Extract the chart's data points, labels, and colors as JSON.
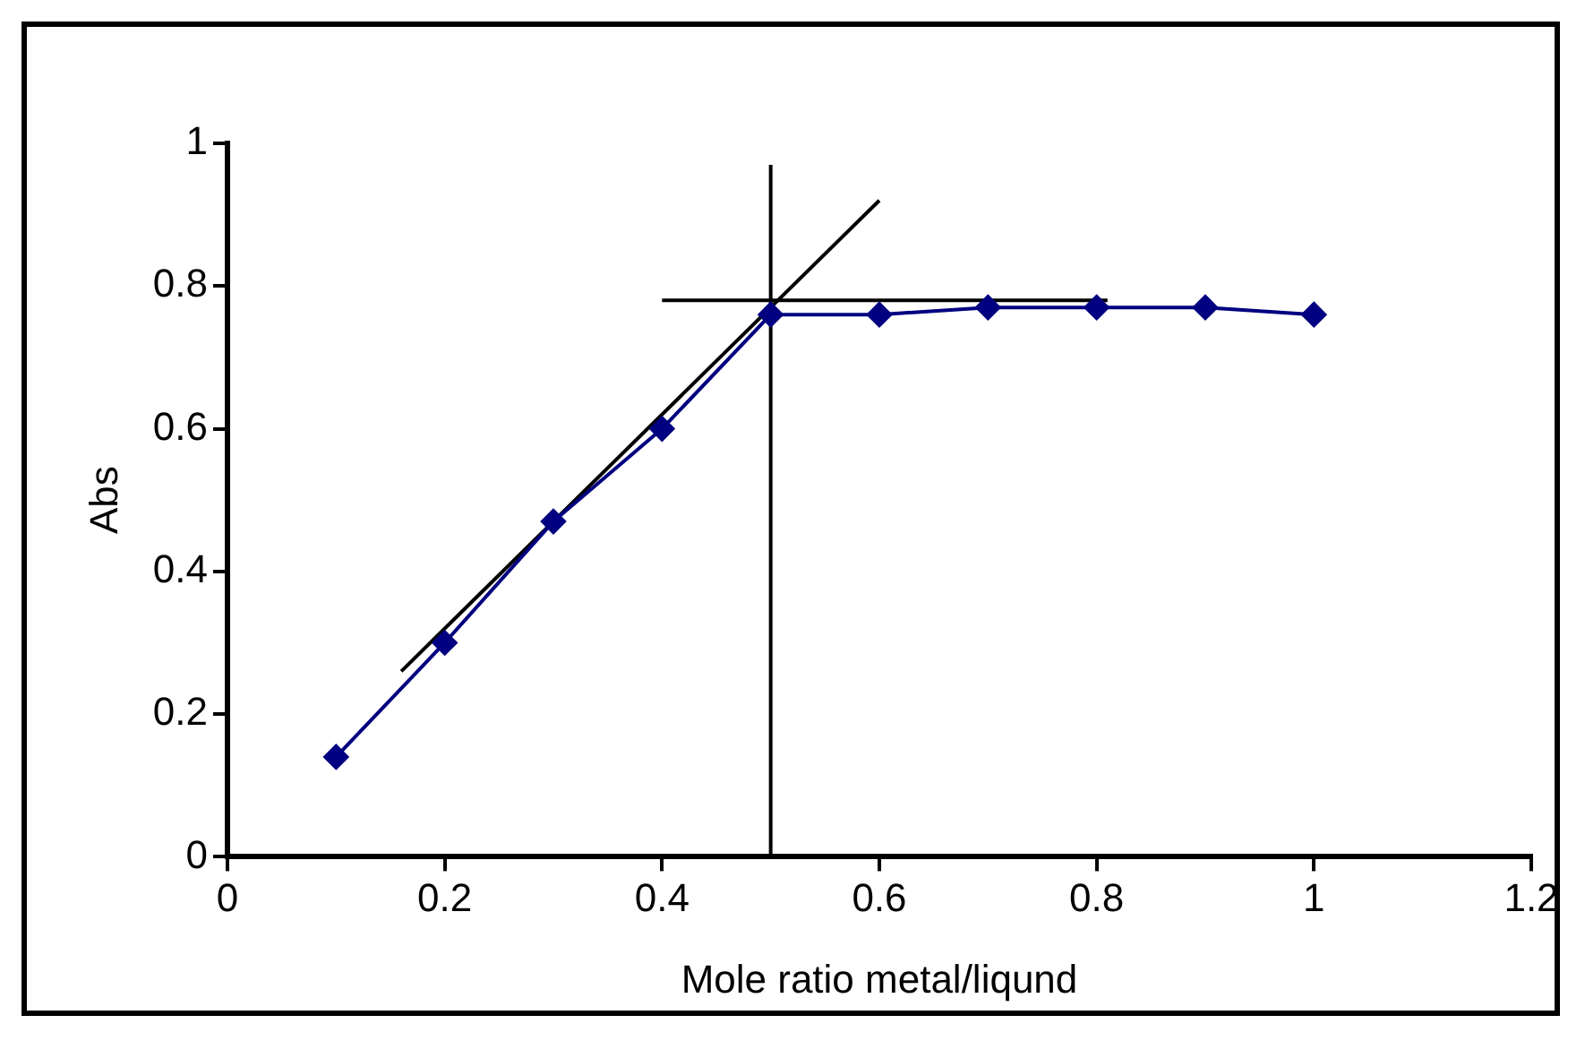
{
  "chart_data": {
    "type": "line",
    "xlabel": "Mole ratio metal/liqund",
    "ylabel": "Abs",
    "xlim": [
      0,
      1.2
    ],
    "xticks": [
      0,
      0.2,
      0.4,
      0.6,
      0.8,
      1,
      1.2
    ],
    "ylim": [
      0,
      1
    ],
    "yticks": [
      0,
      0.2,
      0.4,
      0.6,
      0.8,
      1
    ],
    "grid": false,
    "legend": false,
    "series": [
      {
        "type": "line",
        "color": "#000080",
        "marker": "diamond",
        "x": [
          0.1,
          0.2,
          0.3,
          0.4,
          0.5,
          0.6,
          0.7,
          0.8,
          0.9,
          1
        ],
        "values": [
          0.14,
          0.3,
          0.47,
          0.6,
          0.76,
          0.76,
          0.77,
          0.77,
          0.77,
          0.76
        ]
      },
      {
        "type": "line",
        "color": "#000000",
        "marker": "none",
        "x": [
          0.16,
          0.6
        ],
        "values": [
          0.26,
          0.92
        ]
      },
      {
        "type": "line",
        "color": "#000000",
        "marker": "none",
        "x": [
          0.4,
          0.81
        ],
        "values": [
          0.78,
          0.78
        ]
      },
      {
        "type": "line",
        "color": "#000000",
        "marker": "none",
        "x": [
          0.5,
          0.5
        ],
        "values": [
          0,
          0.97
        ]
      }
    ]
  }
}
